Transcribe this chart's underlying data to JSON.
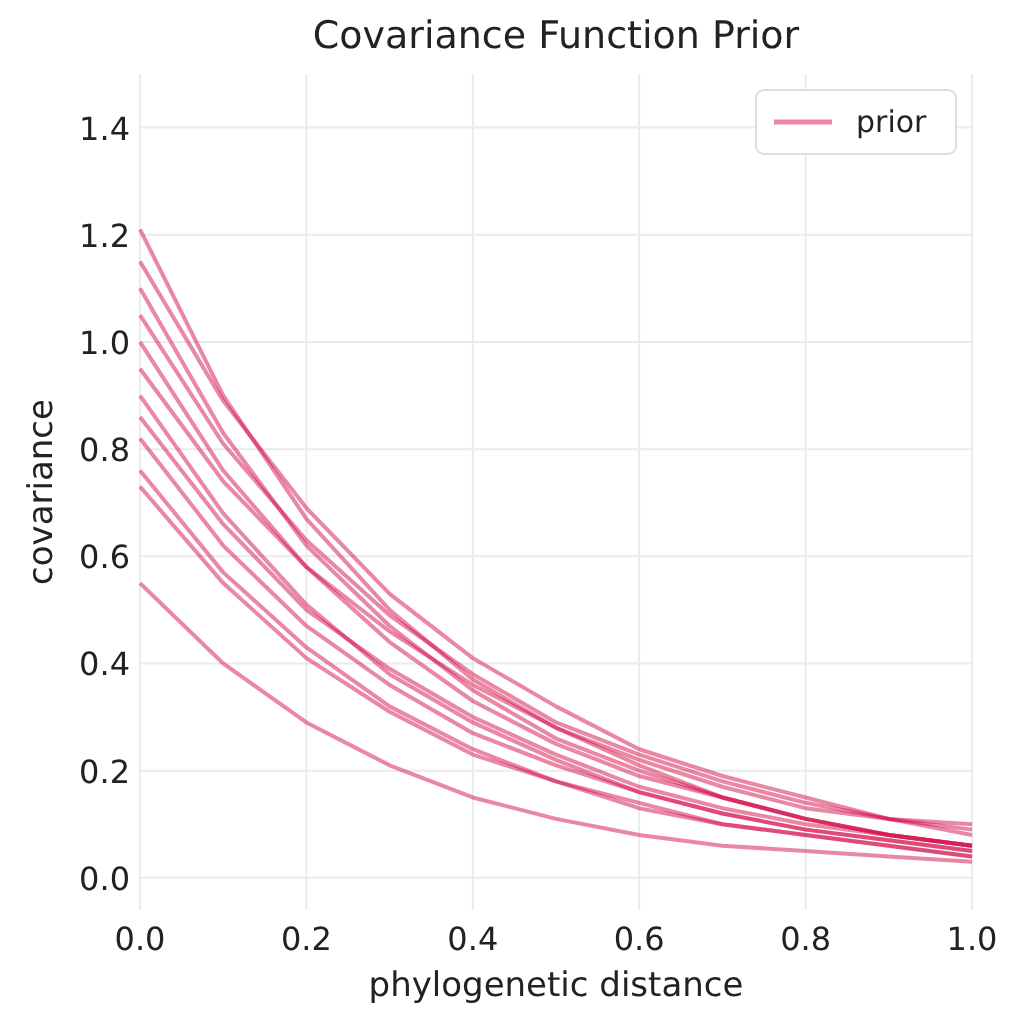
{
  "chart_data": {
    "type": "line",
    "title": "Covariance Function Prior",
    "xlabel": "phylogenetic distance",
    "ylabel": "covariance",
    "x": [
      0,
      0.1,
      0.2,
      0.3,
      0.4,
      0.5,
      0.6,
      0.7,
      0.8,
      0.9,
      1.0
    ],
    "xlim": [
      0,
      1
    ],
    "xticks": [
      {
        "value": 0,
        "label": "0.0"
      },
      0.2,
      0.4,
      0.6,
      0.8,
      {
        "value": 1,
        "label": "1.0"
      }
    ],
    "ylim": [
      -0.06,
      1.5
    ],
    "yticks": [
      {
        "value": 0,
        "label": "0.0"
      },
      0.2,
      0.4,
      0.6,
      0.8,
      {
        "value": 1,
        "label": "1.0"
      },
      1.2,
      1.4
    ],
    "grid": true,
    "legend": "top right",
    "marker": "none",
    "line_style": "solid",
    "series": [
      {
        "name": "prior",
        "color": "#d4104c",
        "values": [
          1.21,
          0.9,
          0.67,
          0.5,
          0.37,
          0.28,
          0.21,
          0.15,
          0.11,
          0.08,
          0.06
        ]
      },
      {
        "color": "#d4104c",
        "values": [
          1.15,
          0.89,
          0.69,
          0.53,
          0.41,
          0.32,
          0.24,
          0.19,
          0.15,
          0.11,
          0.09
        ]
      },
      {
        "color": "#d4104c",
        "values": [
          1.1,
          0.83,
          0.62,
          0.47,
          0.35,
          0.26,
          0.2,
          0.15,
          0.11,
          0.08,
          0.06
        ]
      },
      {
        "color": "#d4104c",
        "values": [
          1.05,
          0.81,
          0.63,
          0.49,
          0.38,
          0.29,
          0.23,
          0.18,
          0.14,
          0.11,
          0.08
        ]
      },
      {
        "color": "#d4104c",
        "values": [
          1.0,
          0.76,
          0.58,
          0.44,
          0.33,
          0.25,
          0.19,
          0.15,
          0.11,
          0.08,
          0.06
        ]
      },
      {
        "color": "#d4104c",
        "values": [
          0.95,
          0.74,
          0.58,
          0.46,
          0.36,
          0.28,
          0.22,
          0.17,
          0.13,
          0.11,
          0.1
        ]
      },
      {
        "color": "#d4104c",
        "values": [
          0.9,
          0.68,
          0.51,
          0.38,
          0.29,
          0.22,
          0.16,
          0.12,
          0.09,
          0.07,
          0.05
        ]
      },
      {
        "color": "#d4104c",
        "values": [
          0.86,
          0.66,
          0.5,
          0.39,
          0.3,
          0.23,
          0.17,
          0.13,
          0.1,
          0.08,
          0.06
        ]
      },
      {
        "color": "#d4104c",
        "values": [
          0.82,
          0.62,
          0.47,
          0.36,
          0.27,
          0.21,
          0.16,
          0.12,
          0.09,
          0.07,
          0.05
        ]
      },
      {
        "color": "#d4104c",
        "values": [
          0.76,
          0.57,
          0.43,
          0.32,
          0.24,
          0.18,
          0.14,
          0.1,
          0.08,
          0.06,
          0.04
        ]
      },
      {
        "color": "#d4104c",
        "values": [
          0.73,
          0.55,
          0.41,
          0.31,
          0.23,
          0.18,
          0.13,
          0.1,
          0.08,
          0.06,
          0.04
        ]
      },
      {
        "color": "#d4104c",
        "values": [
          0.55,
          0.4,
          0.29,
          0.21,
          0.15,
          0.11,
          0.08,
          0.06,
          0.05,
          0.04,
          0.03
        ]
      }
    ]
  }
}
